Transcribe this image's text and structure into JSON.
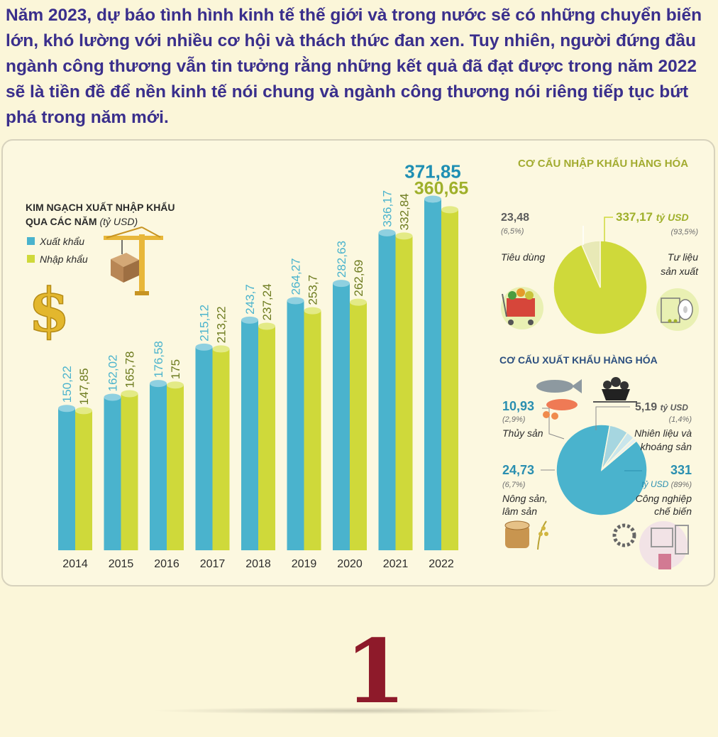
{
  "intro": "Năm 2023, dự báo  tình hình kinh tế thế giới và trong nước sẽ có những chuyển biến lớn, khó lường với nhiều cơ hội và thách thức đan xen. Tuy nhiên, người đứng đầu ngành công thương  vẫn tin tưởng rằng những kết quả đã đạt được trong năm 2022 sẽ là tiền đề để nền kinh tế nói chung và ngành công thương nói riêng tiếp tục bứt phá trong năm mới.",
  "page_number": "1",
  "colors": {
    "export": "#4ab3cd",
    "import": "#cfd93a",
    "panel_border": "#d7d2bd"
  },
  "icons": [
    "crane-icon",
    "box-icon",
    "dollar-icon",
    "shopping-cart-icon",
    "paper-roll-icon",
    "fish-icon",
    "coal-cart-icon",
    "wood-grain-icon",
    "factory-icon"
  ],
  "chart_data": [
    {
      "type": "bar",
      "title": "KIM NGẠCH XUẤT NHẬP KHẨU",
      "title_line2": "QUA CÁC NĂM",
      "unit": "(tỷ USD)",
      "categories": [
        "2014",
        "2015",
        "2016",
        "2017",
        "2018",
        "2019",
        "2020",
        "2021",
        "2022"
      ],
      "series": [
        {
          "name": "Xuất khẩu",
          "values": [
            150.22,
            162.02,
            176.58,
            215.12,
            243.7,
            264.27,
            282.63,
            336.17,
            371.85
          ],
          "labels": [
            "150,22",
            "162,02",
            "176,58",
            "215,12",
            "243,7",
            "264,27",
            "282,63",
            "336,17",
            "371,85"
          ]
        },
        {
          "name": "Nhập khẩu",
          "values": [
            147.85,
            165.78,
            175,
            213.22,
            237.24,
            253.7,
            262.69,
            332.84,
            360.65
          ],
          "labels": [
            "147,85",
            "165,78",
            "175",
            "213,22",
            "237,24",
            "253,7",
            "262,69",
            "332,84",
            "360,65"
          ]
        }
      ],
      "legend": "top-left",
      "grid": false
    },
    {
      "type": "pie",
      "title": "CƠ CẤU NHẬP KHẨU HÀNG HÓA",
      "slices": [
        {
          "label": "Tư liệu sản xuất",
          "label_line1": "Tư liệu",
          "label_line2": "sản xuất",
          "value": 337.17,
          "value_text": "337,17",
          "unit": "tỷ USD",
          "percent": 93.5,
          "percent_text": "(93,5%)",
          "color": "#cfd93a"
        },
        {
          "label": "Tiêu dùng",
          "value": 23.48,
          "value_text": "23,48",
          "percent": 6.5,
          "percent_text": "(6,5%)",
          "color": "#e8e9b6"
        }
      ]
    },
    {
      "type": "pie",
      "title": "CƠ CẤU XUẤT KHẨU HÀNG HÓA",
      "slices": [
        {
          "label": "Công nghiệp chế biến",
          "label_line1": "Công nghiệp",
          "label_line2": "chế biến",
          "value": 331,
          "value_text": "331",
          "unit": "tỷ USD",
          "percent": 89,
          "percent_text": "(89%)",
          "color": "#4ab3cd"
        },
        {
          "label": "Nông sản, lâm sản",
          "label_line1": "Nông sản,",
          "label_line2": "lâm sản",
          "value": 24.73,
          "value_text": "24,73",
          "percent": 6.7,
          "percent_text": "(6,7%)",
          "color": "#a6d6e0"
        },
        {
          "label": "Thủy sản",
          "value": 10.93,
          "value_text": "10,93",
          "percent": 2.9,
          "percent_text": "(2,9%)",
          "color": "#c9e6ec"
        },
        {
          "label": "Nhiên liệu và khoáng sản",
          "label_line1": "Nhiên liệu và",
          "label_line2": "khoáng sản",
          "value": 5.19,
          "value_text": "5,19",
          "unit": "tỷ USD",
          "percent": 1.4,
          "percent_text": "(1,4%)",
          "color": "#e2f1f4"
        }
      ]
    }
  ]
}
